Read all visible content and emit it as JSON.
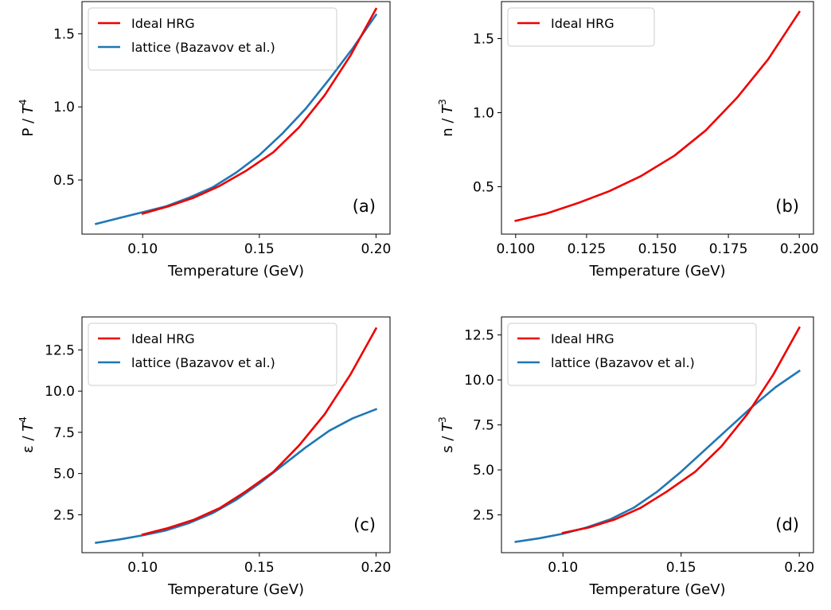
{
  "chart_data": [
    {
      "id": "a",
      "type": "line",
      "panel_label": "(a)",
      "xlabel": "Temperature (GeV)",
      "ylabel_text": "P / ",
      "ylabel_var": "T",
      "ylabel_exp": "4",
      "xlim": [
        0.074,
        0.206
      ],
      "ylim": [
        0.13,
        1.72
      ],
      "xticks": [
        0.1,
        0.15,
        0.2
      ],
      "xtick_labels": [
        "0.10",
        "0.15",
        "0.20"
      ],
      "yticks": [
        0.5,
        1.0,
        1.5
      ],
      "ytick_labels": [
        "0.5",
        "1.0",
        "1.5"
      ],
      "grid": false,
      "legend_position": "top-left",
      "series": [
        {
          "name": "Ideal HRG",
          "color": "#ee0000",
          "x": [
            0.1,
            0.111,
            0.122,
            0.133,
            0.144,
            0.156,
            0.167,
            0.178,
            0.189,
            0.2
          ],
          "y": [
            0.27,
            0.32,
            0.38,
            0.46,
            0.56,
            0.69,
            0.86,
            1.08,
            1.35,
            1.67
          ]
        },
        {
          "name": "lattice (Bazavov et al.)",
          "color": "#1f77b4",
          "x": [
            0.08,
            0.09,
            0.1,
            0.11,
            0.12,
            0.13,
            0.14,
            0.15,
            0.16,
            0.17,
            0.18,
            0.19,
            0.2
          ],
          "y": [
            0.2,
            0.24,
            0.28,
            0.32,
            0.38,
            0.45,
            0.55,
            0.67,
            0.82,
            0.99,
            1.19,
            1.4,
            1.63
          ]
        }
      ]
    },
    {
      "id": "b",
      "type": "line",
      "panel_label": "(b)",
      "xlabel": "Temperature (GeV)",
      "ylabel_text": "n / ",
      "ylabel_var": "T",
      "ylabel_exp": "3",
      "xlim": [
        0.095,
        0.205
      ],
      "ylim": [
        0.18,
        1.75
      ],
      "xticks": [
        0.1,
        0.125,
        0.15,
        0.175,
        0.2
      ],
      "xtick_labels": [
        "0.100",
        "0.125",
        "0.150",
        "0.175",
        "0.200"
      ],
      "yticks": [
        0.5,
        1.0,
        1.5
      ],
      "ytick_labels": [
        "0.5",
        "1.0",
        "1.5"
      ],
      "grid": false,
      "legend_position": "top-left",
      "series": [
        {
          "name": "Ideal HRG",
          "color": "#ee0000",
          "x": [
            0.1,
            0.111,
            0.122,
            0.133,
            0.144,
            0.156,
            0.167,
            0.178,
            0.189,
            0.2
          ],
          "y": [
            0.27,
            0.32,
            0.39,
            0.47,
            0.57,
            0.71,
            0.88,
            1.1,
            1.36,
            1.68
          ]
        }
      ]
    },
    {
      "id": "c",
      "type": "line",
      "panel_label": "(c)",
      "xlabel": "Temperature (GeV)",
      "ylabel_text": "ε / ",
      "ylabel_var": "T",
      "ylabel_exp": "4",
      "xlim": [
        0.074,
        0.206
      ],
      "ylim": [
        0.2,
        14.5
      ],
      "xticks": [
        0.1,
        0.15,
        0.2
      ],
      "xtick_labels": [
        "0.10",
        "0.15",
        "0.20"
      ],
      "yticks": [
        2.5,
        5.0,
        7.5,
        10.0,
        12.5
      ],
      "ytick_labels": [
        "2.5",
        "5.0",
        "7.5",
        "10.0",
        "12.5"
      ],
      "grid": false,
      "legend_position": "top-left",
      "series": [
        {
          "name": "Ideal HRG",
          "color": "#ee0000",
          "x": [
            0.1,
            0.111,
            0.122,
            0.133,
            0.144,
            0.156,
            0.167,
            0.178,
            0.189,
            0.2
          ],
          "y": [
            1.3,
            1.7,
            2.2,
            2.9,
            3.9,
            5.1,
            6.7,
            8.6,
            11.0,
            13.8
          ]
        },
        {
          "name": "lattice (Bazavov et al.)",
          "color": "#1f77b4",
          "x": [
            0.08,
            0.09,
            0.1,
            0.11,
            0.12,
            0.13,
            0.14,
            0.15,
            0.16,
            0.17,
            0.18,
            0.19,
            0.2
          ],
          "y": [
            0.8,
            1.0,
            1.25,
            1.55,
            2.0,
            2.6,
            3.4,
            4.4,
            5.5,
            6.6,
            7.6,
            8.35,
            8.9
          ]
        }
      ]
    },
    {
      "id": "d",
      "type": "line",
      "panel_label": "(d)",
      "xlabel": "Temperature (GeV)",
      "ylabel_text": "s / ",
      "ylabel_var": "T",
      "ylabel_exp": "3",
      "xlim": [
        0.074,
        0.206
      ],
      "ylim": [
        0.4,
        13.5
      ],
      "xticks": [
        0.1,
        0.15,
        0.2
      ],
      "xtick_labels": [
        "0.10",
        "0.15",
        "0.20"
      ],
      "yticks": [
        2.5,
        5.0,
        7.5,
        10.0,
        12.5
      ],
      "ytick_labels": [
        "2.5",
        "5.0",
        "7.5",
        "10.0",
        "12.5"
      ],
      "grid": false,
      "legend_position": "top-left",
      "series": [
        {
          "name": "Ideal HRG",
          "color": "#ee0000",
          "x": [
            0.1,
            0.111,
            0.122,
            0.133,
            0.144,
            0.156,
            0.167,
            0.178,
            0.189,
            0.2
          ],
          "y": [
            1.5,
            1.8,
            2.25,
            2.9,
            3.8,
            4.9,
            6.3,
            8.1,
            10.3,
            12.9
          ]
        },
        {
          "name": "lattice (Bazavov et al.)",
          "color": "#1f77b4",
          "x": [
            0.08,
            0.09,
            0.1,
            0.11,
            0.12,
            0.13,
            0.14,
            0.15,
            0.16,
            0.17,
            0.18,
            0.19,
            0.2
          ],
          "y": [
            1.0,
            1.2,
            1.45,
            1.8,
            2.25,
            2.9,
            3.8,
            4.9,
            6.1,
            7.3,
            8.5,
            9.6,
            10.5
          ]
        }
      ]
    }
  ]
}
